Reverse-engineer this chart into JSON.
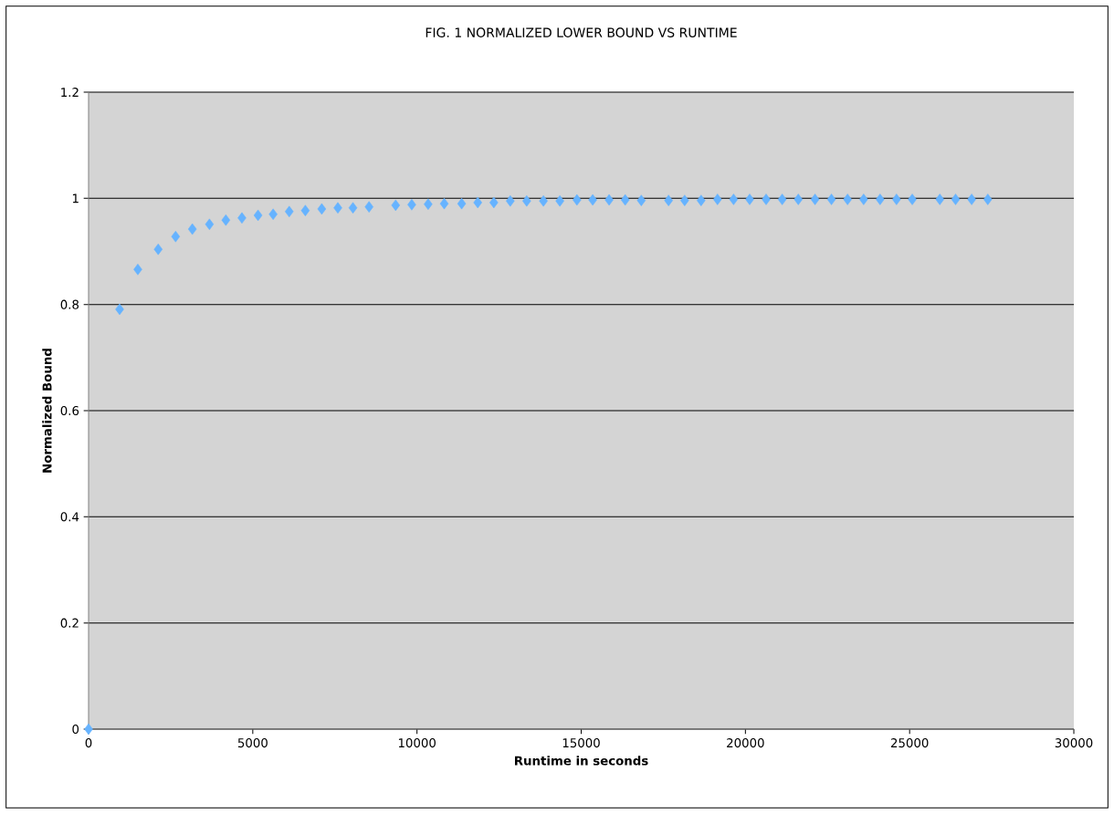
{
  "chart_data": {
    "type": "scatter",
    "title": "FIG. 1 NORMALIZED LOWER BOUND VS RUNTIME",
    "xlabel": "Runtime in seconds",
    "ylabel": "Normalized Bound",
    "x": [
      0,
      945,
      1500,
      2120,
      2650,
      3160,
      3680,
      4180,
      4670,
      5160,
      5620,
      6110,
      6600,
      7100,
      7590,
      8050,
      8540,
      9350,
      9840,
      10340,
      10830,
      11360,
      11850,
      12340,
      12840,
      13340,
      13850,
      14350,
      14870,
      15350,
      15850,
      16340,
      16830,
      17660,
      18150,
      18650,
      19150,
      19640,
      20130,
      20630,
      21120,
      21610,
      22120,
      22620,
      23110,
      23600,
      24100,
      24600,
      25080,
      25920,
      26400,
      26890,
      27380
    ],
    "values": [
      0,
      0.791,
      0.866,
      0.904,
      0.928,
      0.942,
      0.951,
      0.959,
      0.963,
      0.968,
      0.97,
      0.975,
      0.977,
      0.98,
      0.982,
      0.982,
      0.984,
      0.987,
      0.988,
      0.989,
      0.99,
      0.99,
      0.992,
      0.992,
      0.995,
      0.995,
      0.995,
      0.995,
      0.997,
      0.997,
      0.997,
      0.997,
      0.996,
      0.996,
      0.996,
      0.996,
      0.998,
      0.998,
      0.998,
      0.998,
      0.998,
      0.998,
      0.998,
      0.998,
      0.998,
      0.998,
      0.998,
      0.998,
      0.998,
      0.998,
      0.998,
      0.998,
      0.998
    ],
    "color": "#66b3ff",
    "marker": "diamond",
    "grid": "y",
    "xlim": [
      0,
      30000
    ],
    "xticks": [
      0,
      5000,
      10000,
      15000,
      20000,
      25000,
      30000
    ],
    "ylim": [
      0,
      1.2
    ],
    "yticks": [
      0,
      0.2,
      0.4,
      0.6,
      0.8,
      1,
      1.2
    ]
  }
}
